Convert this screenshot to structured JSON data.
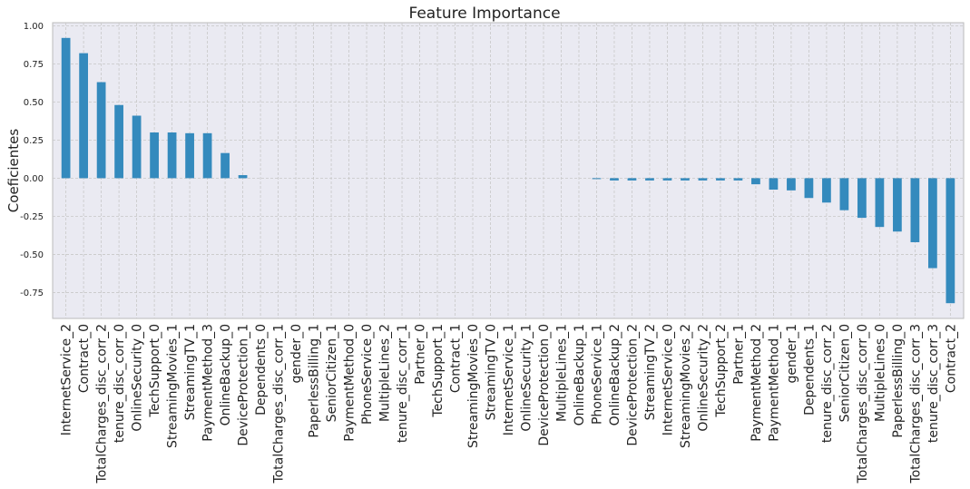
{
  "chart_data": {
    "type": "bar",
    "title": "Feature Importance",
    "xlabel": "",
    "ylabel": "Coeficientes",
    "ylim": [
      -0.92,
      1.02
    ],
    "yticks": [
      -0.75,
      -0.5,
      -0.25,
      0.0,
      0.25,
      0.5,
      0.75,
      1.0
    ],
    "ytick_labels": [
      "-0.75",
      "-0.50",
      "-0.25",
      "0.00",
      "0.25",
      "0.50",
      "0.75",
      "1.00"
    ],
    "grid": true,
    "bar_color": "#348abd",
    "background_color": "#eaeaf2",
    "categories": [
      "InternetService_2",
      "Contract_0",
      "TotalCharges_disc_corr_2",
      "tenure_disc_corr_0",
      "OnlineSecurity_0",
      "TechSupport_0",
      "StreamingMovies_1",
      "StreamingTV_1",
      "PaymentMethod_3",
      "OnlineBackup_0",
      "DeviceProtection_1",
      "Dependents_0",
      "TotalCharges_disc_corr_1",
      "gender_0",
      "PaperlessBilling_1",
      "SeniorCitizen_1",
      "PaymentMethod_0",
      "PhoneService_0",
      "MultipleLines_2",
      "tenure_disc_corr_1",
      "Partner_0",
      "TechSupport_1",
      "Contract_1",
      "StreamingMovies_0",
      "StreamingTV_0",
      "InternetService_1",
      "OnlineSecurity_1",
      "DeviceProtection_0",
      "MultipleLines_1",
      "OnlineBackup_1",
      "PhoneService_1",
      "OnlineBackup_2",
      "DeviceProtection_2",
      "StreamingTV_2",
      "InternetService_0",
      "StreamingMovies_2",
      "OnlineSecurity_2",
      "TechSupport_2",
      "Partner_1",
      "PaymentMethod_2",
      "PaymentMethod_1",
      "gender_1",
      "Dependents_1",
      "tenure_disc_corr_2",
      "SeniorCitizen_0",
      "TotalCharges_disc_corr_0",
      "MultipleLines_0",
      "PaperlessBilling_0",
      "TotalCharges_disc_corr_3",
      "tenure_disc_corr_3",
      "Contract_2"
    ],
    "values": [
      0.92,
      0.82,
      0.63,
      0.48,
      0.41,
      0.3,
      0.3,
      0.295,
      0.295,
      0.165,
      0.02,
      0.0,
      0.0,
      0.0,
      0.0,
      0.0,
      0.0,
      0.0,
      0.0,
      0.0,
      0.0,
      0.0,
      0.0,
      0.0,
      0.0,
      0.0,
      0.0,
      0.0,
      0.0,
      0.0,
      -0.005,
      -0.015,
      -0.015,
      -0.015,
      -0.015,
      -0.015,
      -0.015,
      -0.015,
      -0.015,
      -0.04,
      -0.075,
      -0.08,
      -0.13,
      -0.16,
      -0.21,
      -0.26,
      -0.32,
      -0.35,
      -0.42,
      -0.59,
      -0.82
    ]
  }
}
